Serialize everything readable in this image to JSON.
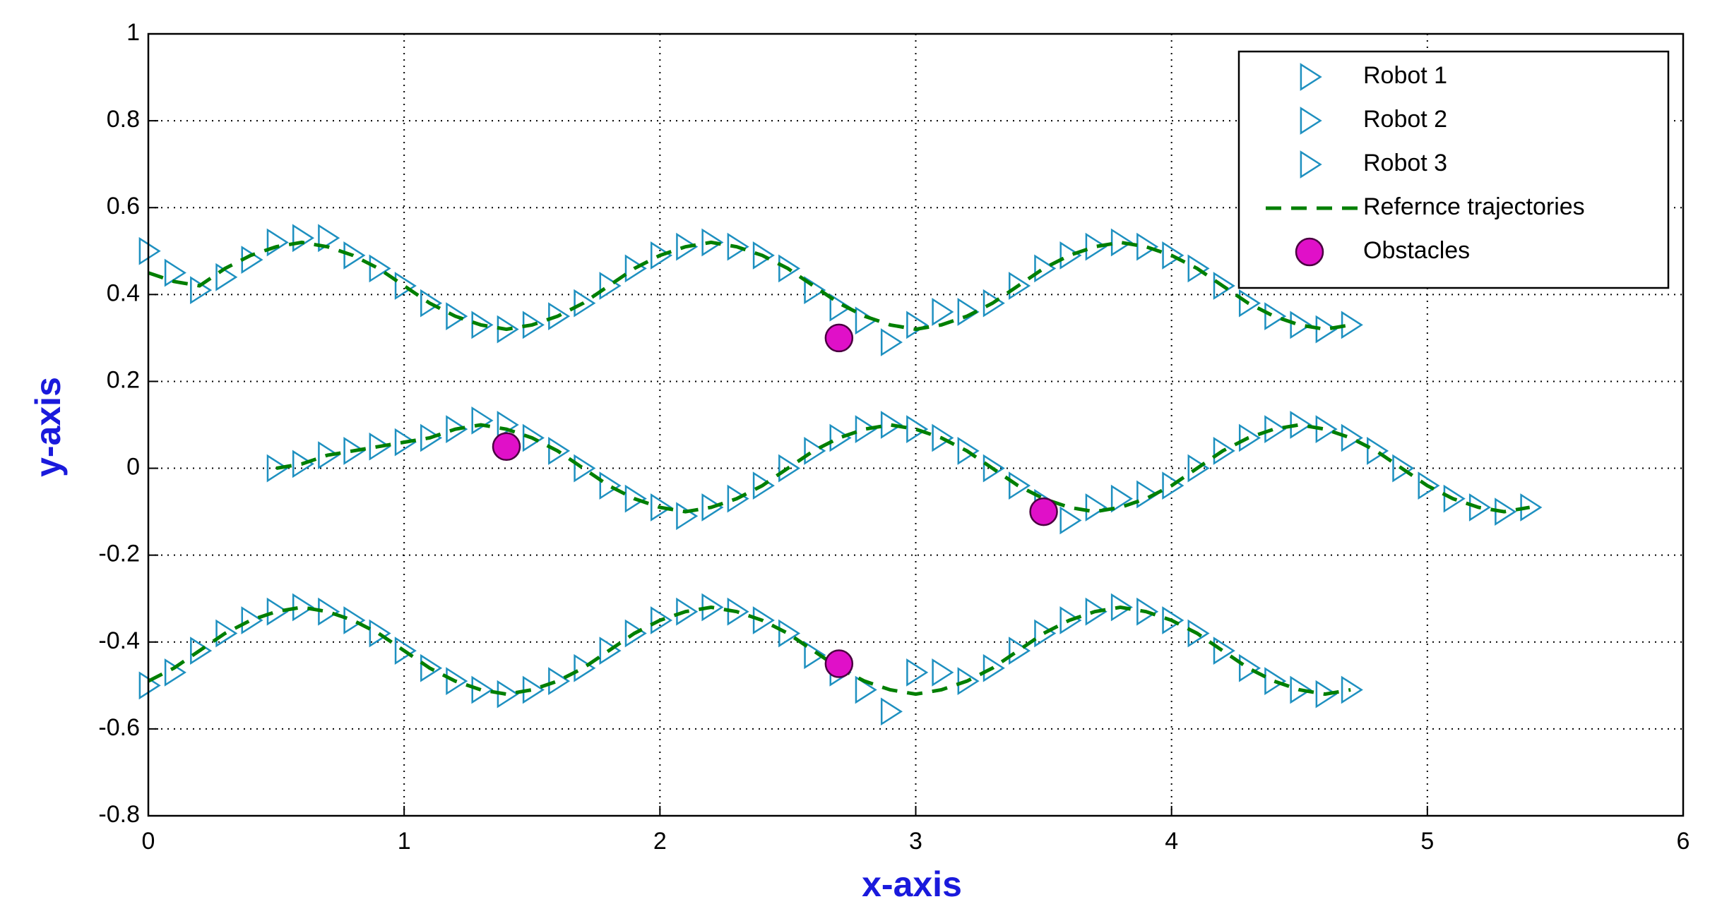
{
  "chart_data": {
    "type": "line",
    "xlabel": "x-axis",
    "ylabel": "y-axis",
    "xlim": [
      0,
      6
    ],
    "ylim": [
      -0.8,
      1
    ],
    "xticks": [
      0,
      1,
      2,
      3,
      4,
      5,
      6
    ],
    "yticks": [
      -0.8,
      -0.6,
      -0.4,
      -0.2,
      0,
      0.2,
      0.4,
      0.6,
      0.8,
      1
    ],
    "grid": true,
    "legend": "upper right",
    "series": [
      {
        "name": "Robot 1",
        "color": "#1e90c0",
        "marker": "triangle-right",
        "linestyle": "none",
        "x": [
          0,
          0.1,
          0.2,
          0.3,
          0.4,
          0.5,
          0.6,
          0.7,
          0.8,
          0.9,
          1,
          1.1,
          1.2,
          1.3,
          1.4,
          1.5,
          1.6,
          1.7,
          1.8,
          1.9,
          2,
          2.1,
          2.2,
          2.3,
          2.4,
          2.5,
          2.6,
          2.7,
          2.8,
          2.9,
          3,
          3.1,
          3.2,
          3.3,
          3.4,
          3.5,
          3.6,
          3.7,
          3.8,
          3.9,
          4,
          4.1,
          4.2,
          4.3,
          4.4,
          4.5,
          4.6,
          4.7
        ],
        "values": [
          0.5,
          0.45,
          0.41,
          0.44,
          0.48,
          0.52,
          0.53,
          0.53,
          0.49,
          0.46,
          0.42,
          0.38,
          0.35,
          0.33,
          0.32,
          0.33,
          0.35,
          0.38,
          0.42,
          0.46,
          0.49,
          0.51,
          0.52,
          0.51,
          0.49,
          0.46,
          0.41,
          0.37,
          0.34,
          0.29,
          0.33,
          0.36,
          0.36,
          0.38,
          0.42,
          0.46,
          0.49,
          0.51,
          0.52,
          0.51,
          0.49,
          0.46,
          0.42,
          0.38,
          0.35,
          0.33,
          0.32,
          0.33
        ]
      },
      {
        "name": "Robot 2",
        "color": "#1e90c0",
        "marker": "triangle-right",
        "linestyle": "none",
        "x": [
          0.5,
          0.6,
          0.7,
          0.8,
          0.9,
          1,
          1.1,
          1.2,
          1.3,
          1.4,
          1.5,
          1.6,
          1.7,
          1.8,
          1.9,
          2,
          2.1,
          2.2,
          2.3,
          2.4,
          2.5,
          2.6,
          2.7,
          2.8,
          2.9,
          3,
          3.1,
          3.2,
          3.3,
          3.4,
          3.5,
          3.6,
          3.7,
          3.8,
          3.9,
          4,
          4.1,
          4.2,
          4.3,
          4.4,
          4.5,
          4.6,
          4.7,
          4.8,
          4.9,
          5,
          5.1,
          5.2,
          5.3,
          5.4
        ],
        "values": [
          0,
          0.01,
          0.03,
          0.04,
          0.05,
          0.06,
          0.07,
          0.09,
          0.11,
          0.1,
          0.07,
          0.04,
          0,
          -0.04,
          -0.07,
          -0.09,
          -0.11,
          -0.09,
          -0.07,
          -0.04,
          0,
          0.04,
          0.07,
          0.09,
          0.1,
          0.09,
          0.07,
          0.04,
          0,
          -0.04,
          -0.08,
          -0.12,
          -0.09,
          -0.07,
          -0.06,
          -0.04,
          0,
          0.04,
          0.07,
          0.09,
          0.1,
          0.09,
          0.07,
          0.04,
          0,
          -0.04,
          -0.07,
          -0.09,
          -0.1,
          -0.09
        ]
      },
      {
        "name": "Robot 3",
        "color": "#1e90c0",
        "marker": "triangle-right",
        "linestyle": "none",
        "x": [
          0,
          0.1,
          0.2,
          0.3,
          0.4,
          0.5,
          0.6,
          0.7,
          0.8,
          0.9,
          1,
          1.1,
          1.2,
          1.3,
          1.4,
          1.5,
          1.6,
          1.7,
          1.8,
          1.9,
          2,
          2.1,
          2.2,
          2.3,
          2.4,
          2.5,
          2.6,
          2.7,
          2.8,
          2.9,
          3,
          3.1,
          3.2,
          3.3,
          3.4,
          3.5,
          3.6,
          3.7,
          3.8,
          3.9,
          4,
          4.1,
          4.2,
          4.3,
          4.4,
          4.5,
          4.6,
          4.7
        ],
        "values": [
          -0.5,
          -0.47,
          -0.42,
          -0.38,
          -0.35,
          -0.33,
          -0.32,
          -0.33,
          -0.35,
          -0.38,
          -0.42,
          -0.46,
          -0.49,
          -0.51,
          -0.52,
          -0.51,
          -0.49,
          -0.46,
          -0.42,
          -0.38,
          -0.35,
          -0.33,
          -0.32,
          -0.33,
          -0.35,
          -0.38,
          -0.43,
          -0.47,
          -0.51,
          -0.56,
          -0.47,
          -0.47,
          -0.49,
          -0.46,
          -0.42,
          -0.38,
          -0.35,
          -0.33,
          -0.32,
          -0.33,
          -0.35,
          -0.38,
          -0.42,
          -0.46,
          -0.49,
          -0.51,
          -0.52,
          -0.51
        ]
      },
      {
        "name": "Refernce trajectories",
        "color": "#007f00",
        "marker": null,
        "linestyle": "dashed",
        "x": [
          0,
          0.1,
          0.2,
          0.3,
          0.4,
          0.5,
          0.6,
          0.7,
          0.8,
          0.9,
          1,
          1.1,
          1.2,
          1.3,
          1.4,
          1.5,
          1.6,
          1.7,
          1.8,
          1.9,
          2,
          2.1,
          2.2,
          2.3,
          2.4,
          2.5,
          2.6,
          2.7,
          2.8,
          2.9,
          3,
          3.1,
          3.2,
          3.3,
          3.4,
          3.5,
          3.6,
          3.7,
          3.8,
          3.9,
          4,
          4.1,
          4.2,
          4.3,
          4.4,
          4.5,
          4.6,
          4.7,
          null,
          0.5,
          0.6,
          0.7,
          0.8,
          0.9,
          1,
          1.1,
          1.2,
          1.3,
          1.4,
          1.5,
          1.6,
          1.7,
          1.8,
          1.9,
          2,
          2.1,
          2.2,
          2.3,
          2.4,
          2.5,
          2.6,
          2.7,
          2.8,
          2.9,
          3,
          3.1,
          3.2,
          3.3,
          3.4,
          3.5,
          3.6,
          3.7,
          3.8,
          3.9,
          4,
          4.1,
          4.2,
          4.3,
          4.4,
          4.5,
          4.6,
          4.7,
          4.8,
          4.9,
          5,
          5.1,
          5.2,
          5.3,
          5.4,
          null,
          0,
          0.1,
          0.2,
          0.3,
          0.4,
          0.5,
          0.6,
          0.7,
          0.8,
          0.9,
          1,
          1.1,
          1.2,
          1.3,
          1.4,
          1.5,
          1.6,
          1.7,
          1.8,
          1.9,
          2,
          2.1,
          2.2,
          2.3,
          2.4,
          2.5,
          2.6,
          2.7,
          2.8,
          2.9,
          3,
          3.1,
          3.2,
          3.3,
          3.4,
          3.5,
          3.6,
          3.7,
          3.8,
          3.9,
          4,
          4.1,
          4.2,
          4.3,
          4.4,
          4.5,
          4.6,
          4.7
        ],
        "values": [
          0.45,
          0.43,
          0.42,
          0.46,
          0.49,
          0.51,
          0.52,
          0.51,
          0.49,
          0.46,
          0.42,
          0.38,
          0.35,
          0.33,
          0.32,
          0.33,
          0.35,
          0.38,
          0.42,
          0.46,
          0.49,
          0.51,
          0.52,
          0.51,
          0.49,
          0.46,
          0.42,
          0.38,
          0.35,
          0.33,
          0.32,
          0.33,
          0.35,
          0.38,
          0.42,
          0.46,
          0.49,
          0.51,
          0.52,
          0.51,
          0.49,
          0.46,
          0.42,
          0.38,
          0.35,
          0.33,
          0.32,
          0.33,
          null,
          0,
          0.01,
          0.03,
          0.04,
          0.05,
          0.06,
          0.07,
          0.09,
          0.1,
          0.09,
          0.07,
          0.04,
          0,
          -0.04,
          -0.07,
          -0.09,
          -0.1,
          -0.09,
          -0.07,
          -0.04,
          0,
          0.04,
          0.07,
          0.09,
          0.1,
          0.09,
          0.07,
          0.04,
          0,
          -0.04,
          -0.07,
          -0.09,
          -0.1,
          -0.09,
          -0.07,
          -0.04,
          0,
          0.04,
          0.07,
          0.09,
          0.1,
          0.09,
          0.07,
          0.04,
          0,
          -0.04,
          -0.07,
          -0.09,
          -0.1,
          -0.09,
          null,
          -0.49,
          -0.46,
          -0.42,
          -0.38,
          -0.35,
          -0.33,
          -0.32,
          -0.33,
          -0.35,
          -0.38,
          -0.42,
          -0.46,
          -0.49,
          -0.51,
          -0.52,
          -0.51,
          -0.49,
          -0.46,
          -0.42,
          -0.38,
          -0.35,
          -0.33,
          -0.32,
          -0.33,
          -0.35,
          -0.38,
          -0.42,
          -0.46,
          -0.49,
          -0.51,
          -0.52,
          -0.51,
          -0.49,
          -0.46,
          -0.42,
          -0.38,
          -0.35,
          -0.33,
          -0.32,
          -0.33,
          -0.35,
          -0.38,
          -0.42,
          -0.46,
          -0.49,
          -0.51,
          -0.52,
          -0.51
        ]
      },
      {
        "name": "Obstacles",
        "color": "#e010c8",
        "marker": "circle",
        "linestyle": "none",
        "x": [
          2.7,
          1.4,
          3.5,
          2.7
        ],
        "values": [
          0.3,
          0.05,
          -0.1,
          -0.45
        ]
      }
    ]
  }
}
